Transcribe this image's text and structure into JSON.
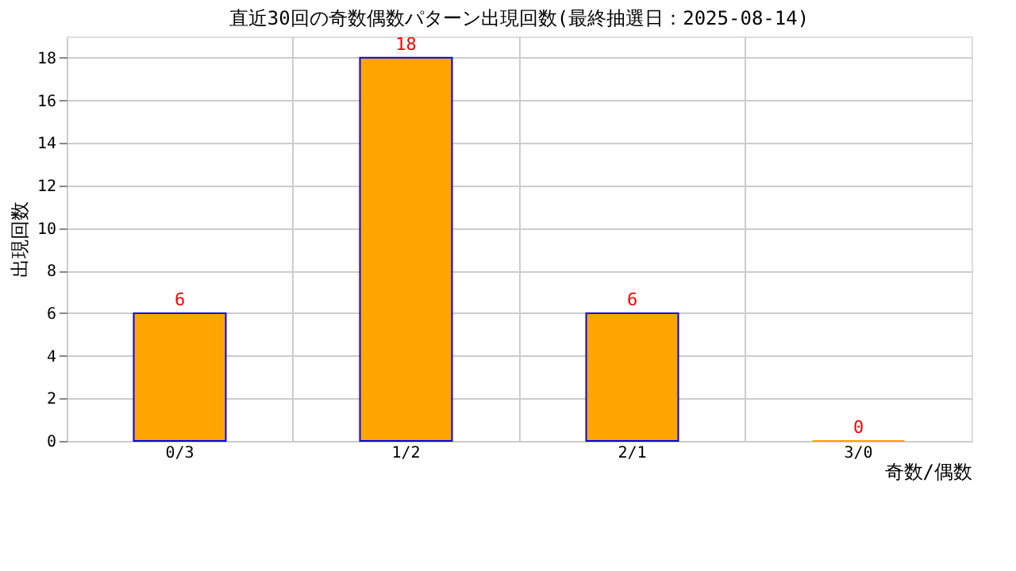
{
  "chart_data": {
    "type": "bar",
    "title": "直近30回の奇数偶数パターン出現回数(最終抽選日：2025-08-14)",
    "xlabel": "奇数/偶数",
    "ylabel": "出現回数",
    "categories": [
      "0/3",
      "1/2",
      "2/1",
      "3/0"
    ],
    "values": [
      6,
      18,
      6,
      0
    ],
    "color": "#ffa500",
    "ylim": [
      0,
      19
    ],
    "yticks": [
      0,
      2,
      4,
      6,
      8,
      10,
      12,
      14,
      16,
      18
    ],
    "grid": true,
    "data_labels": true
  }
}
